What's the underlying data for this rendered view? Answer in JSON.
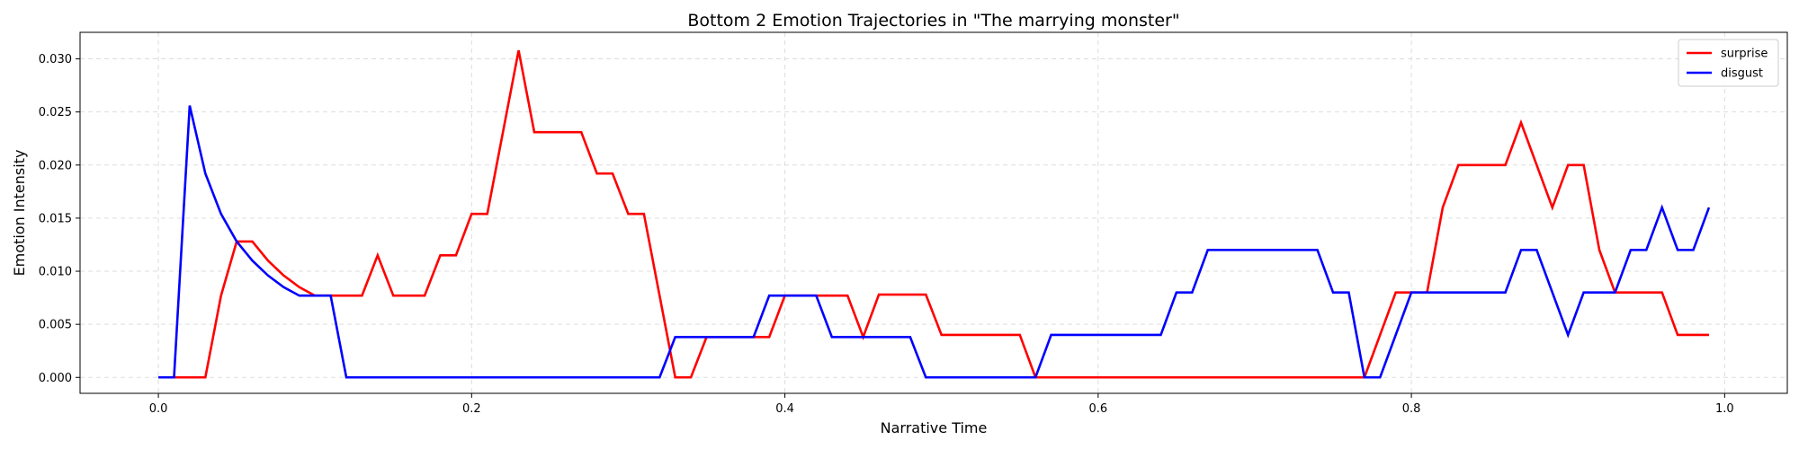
{
  "chart_data": {
    "type": "line",
    "title": "Bottom 2 Emotion Trajectories in \"The marrying monster\"",
    "xlabel": "Narrative Time",
    "ylabel": "Emotion Intensity",
    "xlim": [
      -0.05,
      1.04
    ],
    "ylim": [
      -0.0015,
      0.0325
    ],
    "xticks": [
      0.0,
      0.2,
      0.4,
      0.6,
      0.8,
      1.0
    ],
    "xtick_labels": [
      "0.0",
      "0.2",
      "0.4",
      "0.6",
      "0.8",
      "1.0"
    ],
    "yticks": [
      0.0,
      0.005,
      0.01,
      0.015,
      0.02,
      0.025,
      0.03
    ],
    "ytick_labels": [
      "0.000",
      "0.005",
      "0.010",
      "0.015",
      "0.020",
      "0.025",
      "0.030"
    ],
    "grid": true,
    "legend_position": "top-right",
    "x": [
      0.0,
      0.01,
      0.02,
      0.03,
      0.04,
      0.05,
      0.06,
      0.07,
      0.08,
      0.09,
      0.1,
      0.11,
      0.12,
      0.13,
      0.14,
      0.15,
      0.16,
      0.17,
      0.18,
      0.19,
      0.2,
      0.21,
      0.22,
      0.23,
      0.24,
      0.25,
      0.26,
      0.27,
      0.28,
      0.29,
      0.3,
      0.31,
      0.32,
      0.33,
      0.34,
      0.35,
      0.36,
      0.37,
      0.38,
      0.39,
      0.4,
      0.41,
      0.42,
      0.43,
      0.44,
      0.45,
      0.46,
      0.47,
      0.48,
      0.49,
      0.5,
      0.51,
      0.52,
      0.53,
      0.54,
      0.55,
      0.56,
      0.57,
      0.58,
      0.59,
      0.6,
      0.61,
      0.62,
      0.63,
      0.64,
      0.65,
      0.66,
      0.67,
      0.68,
      0.69,
      0.7,
      0.71,
      0.72,
      0.73,
      0.74,
      0.75,
      0.76,
      0.77,
      0.78,
      0.79,
      0.8,
      0.81,
      0.82,
      0.83,
      0.84,
      0.85,
      0.86,
      0.87,
      0.88,
      0.89,
      0.9,
      0.91,
      0.92,
      0.93,
      0.94,
      0.95,
      0.96,
      0.97,
      0.98,
      0.99
    ],
    "series": [
      {
        "name": "surprise",
        "color": "#ff0000",
        "values": [
          0,
          0,
          0,
          0,
          0.0077,
          0.0128,
          0.0128,
          0.011,
          0.0096,
          0.0085,
          0.0077,
          0.0077,
          0.0077,
          0.0077,
          0.0115,
          0.0077,
          0.0077,
          0.0077,
          0.0115,
          0.0115,
          0.0154,
          0.0154,
          0.0231,
          0.0308,
          0.0231,
          0.0231,
          0.0231,
          0.0231,
          0.0192,
          0.0192,
          0.0154,
          0.0154,
          0.0077,
          0,
          0,
          0.0038,
          0.0038,
          0.0038,
          0.0038,
          0.0038,
          0.0077,
          0.0077,
          0.0077,
          0.0077,
          0.0077,
          0.0038,
          0.0078,
          0.0078,
          0.0078,
          0.0078,
          0.004,
          0.004,
          0.004,
          0.004,
          0.004,
          0.004,
          0,
          0,
          0,
          0,
          0,
          0,
          0,
          0,
          0,
          0,
          0,
          0,
          0,
          0,
          0,
          0,
          0,
          0,
          0,
          0,
          0,
          0,
          0.004,
          0.008,
          0.008,
          0.008,
          0.016,
          0.02,
          0.02,
          0.02,
          0.02,
          0.024,
          0.02,
          0.016,
          0.02,
          0.02,
          0.012,
          0.008,
          0.008,
          0.008,
          0.008,
          0.004,
          0.004,
          0.004
        ]
      },
      {
        "name": "disgust",
        "color": "#0000ff",
        "values": [
          0,
          0,
          0.0256,
          0.0192,
          0.0154,
          0.0128,
          0.011,
          0.0096,
          0.0085,
          0.0077,
          0.0077,
          0.0077,
          0,
          0,
          0,
          0,
          0,
          0,
          0,
          0,
          0,
          0,
          0,
          0,
          0,
          0,
          0,
          0,
          0,
          0,
          0,
          0,
          0,
          0.0038,
          0.0038,
          0.0038,
          0.0038,
          0.0038,
          0.0038,
          0.0077,
          0.0077,
          0.0077,
          0.0077,
          0.0038,
          0.0038,
          0.0038,
          0.0038,
          0.0038,
          0.0038,
          0,
          0,
          0,
          0,
          0,
          0,
          0,
          0,
          0.004,
          0.004,
          0.004,
          0.004,
          0.004,
          0.004,
          0.004,
          0.004,
          0.008,
          0.008,
          0.012,
          0.012,
          0.012,
          0.012,
          0.012,
          0.012,
          0.012,
          0.012,
          0.008,
          0.008,
          0,
          0,
          0.004,
          0.008,
          0.008,
          0.008,
          0.008,
          0.008,
          0.008,
          0.008,
          0.012,
          0.012,
          0.008,
          0.004,
          0.008,
          0.008,
          0.008,
          0.012,
          0.012,
          0.016,
          0.012,
          0.012,
          0.016
        ]
      }
    ]
  }
}
